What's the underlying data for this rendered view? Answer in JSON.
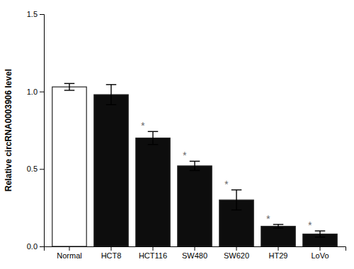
{
  "chart_data": {
    "type": "bar",
    "ylabel": "Relative circRNA0003906 level",
    "categories": [
      "Normal",
      "HCT8",
      "HCT116",
      "SW480",
      "SW620",
      "HT29",
      "LoVo"
    ],
    "values": [
      1.03,
      0.98,
      0.7,
      0.52,
      0.3,
      0.13,
      0.08
    ],
    "errors": [
      0.022,
      0.065,
      0.042,
      0.03,
      0.065,
      0.012,
      0.02
    ],
    "significance": [
      null,
      null,
      "*",
      "*",
      "*",
      "*",
      "*"
    ],
    "colors": [
      "#ffffff",
      "#0d0d0d",
      "#0d0d0d",
      "#0d0d0d",
      "#0d0d0d",
      "#0d0d0d",
      "#0d0d0d"
    ],
    "ylim": [
      0.0,
      1.5
    ],
    "yticks": [
      {
        "value": 0.0,
        "label": "0.0"
      },
      0.5,
      {
        "value": 1.0,
        "label": "1.0"
      },
      1.5
    ],
    "grid": false
  }
}
